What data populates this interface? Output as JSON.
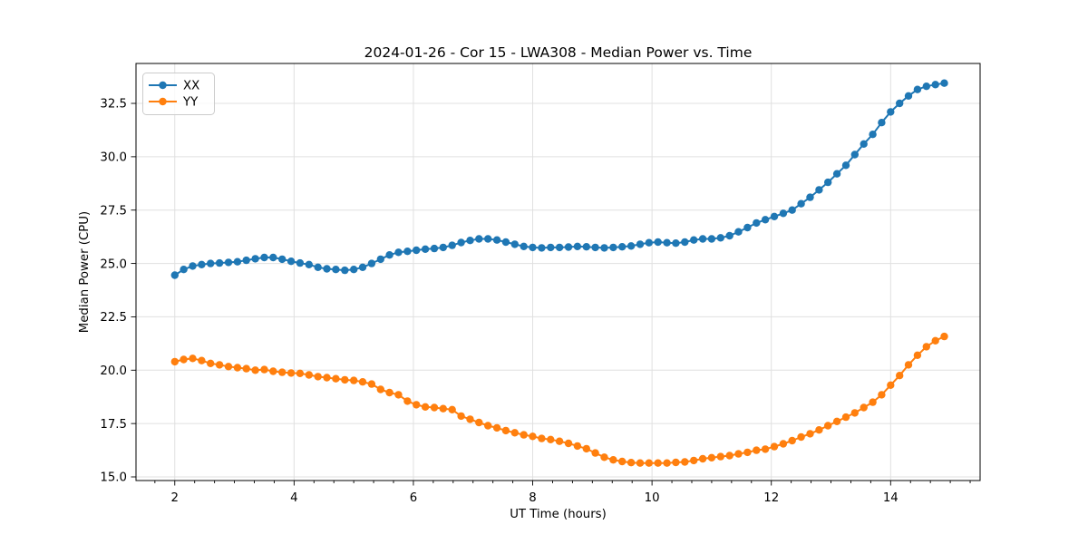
{
  "figure": {
    "background": "#ffffff"
  },
  "chart_data": {
    "type": "line",
    "title": "2024-01-26 - Cor 15 - LWA308 - Median Power vs. Time",
    "xlabel": "UT Time (hours)",
    "ylabel": "Median Power (CPU)",
    "xlim": [
      1.35,
      15.5
    ],
    "ylim": [
      14.83,
      34.37
    ],
    "grid": true,
    "grid_color": "#e0e0e0",
    "spine_color": "#000000",
    "legend_position": "upper left",
    "x_ticks": [
      2,
      4,
      6,
      8,
      10,
      12,
      14
    ],
    "x_tick_labels": [
      "2",
      "4",
      "6",
      "8",
      "10",
      "12",
      "14"
    ],
    "x_minor_step": 0.3333333,
    "y_ticks": [
      15.0,
      17.5,
      20.0,
      22.5,
      25.0,
      27.5,
      30.0,
      32.5
    ],
    "y_tick_labels": [
      "15.0",
      "17.5",
      "20.0",
      "22.5",
      "25.0",
      "27.5",
      "30.0",
      "32.5"
    ],
    "x": [
      2.0,
      2.15,
      2.3,
      2.45,
      2.6,
      2.75,
      2.9,
      3.05,
      3.2,
      3.35,
      3.5,
      3.65,
      3.8,
      3.95,
      4.1,
      4.25,
      4.4,
      4.55,
      4.7,
      4.85,
      5.0,
      5.15,
      5.3,
      5.45,
      5.6,
      5.75,
      5.9,
      6.05,
      6.2,
      6.35,
      6.5,
      6.65,
      6.8,
      6.95,
      7.1,
      7.25,
      7.4,
      7.55,
      7.7,
      7.85,
      8.0,
      8.15,
      8.3,
      8.45,
      8.6,
      8.75,
      8.9,
      9.05,
      9.2,
      9.35,
      9.5,
      9.65,
      9.8,
      9.95,
      10.1,
      10.25,
      10.4,
      10.55,
      10.7,
      10.85,
      11.0,
      11.15,
      11.3,
      11.45,
      11.6,
      11.75,
      11.9,
      12.05,
      12.2,
      12.35,
      12.5,
      12.65,
      12.8,
      12.95,
      13.1,
      13.25,
      13.4,
      13.55,
      13.7,
      13.85,
      14.0,
      14.15,
      14.3,
      14.45,
      14.6,
      14.75,
      14.9
    ],
    "series": [
      {
        "name": "XX",
        "color": "#1f77b4",
        "values": [
          24.45,
          24.72,
          24.88,
          24.95,
          25.0,
          25.02,
          25.05,
          25.08,
          25.15,
          25.22,
          25.28,
          25.28,
          25.2,
          25.1,
          25.02,
          24.95,
          24.82,
          24.75,
          24.72,
          24.68,
          24.72,
          24.82,
          25.0,
          25.2,
          25.4,
          25.52,
          25.57,
          25.62,
          25.67,
          25.7,
          25.75,
          25.85,
          25.98,
          26.08,
          26.15,
          26.15,
          26.1,
          26.0,
          25.9,
          25.8,
          25.75,
          25.73,
          25.75,
          25.75,
          25.77,
          25.8,
          25.78,
          25.75,
          25.73,
          25.75,
          25.78,
          25.82,
          25.9,
          25.97,
          26.0,
          25.97,
          25.95,
          26.0,
          26.1,
          26.15,
          26.15,
          26.2,
          26.3,
          26.48,
          26.68,
          26.9,
          27.05,
          27.2,
          27.35,
          27.5,
          27.8,
          28.1,
          28.45,
          28.8,
          29.2,
          29.6,
          30.1,
          30.6,
          31.05,
          31.6,
          32.1,
          32.5,
          32.85,
          33.15,
          33.3,
          33.38,
          33.45
        ]
      },
      {
        "name": "YY",
        "color": "#ff7f0e",
        "values": [
          20.4,
          20.5,
          20.55,
          20.45,
          20.32,
          20.25,
          20.17,
          20.12,
          20.07,
          20.0,
          20.03,
          19.95,
          19.9,
          19.87,
          19.85,
          19.78,
          19.7,
          19.65,
          19.6,
          19.55,
          19.52,
          19.45,
          19.35,
          19.1,
          18.95,
          18.85,
          18.55,
          18.38,
          18.28,
          18.25,
          18.2,
          18.15,
          17.85,
          17.7,
          17.55,
          17.4,
          17.3,
          17.17,
          17.07,
          16.97,
          16.9,
          16.8,
          16.75,
          16.67,
          16.57,
          16.45,
          16.32,
          16.12,
          15.92,
          15.8,
          15.72,
          15.67,
          15.65,
          15.65,
          15.65,
          15.65,
          15.68,
          15.7,
          15.77,
          15.85,
          15.9,
          15.95,
          16.0,
          16.08,
          16.15,
          16.25,
          16.3,
          16.42,
          16.55,
          16.7,
          16.87,
          17.02,
          17.2,
          17.4,
          17.6,
          17.8,
          18.0,
          18.25,
          18.5,
          18.85,
          19.3,
          19.75,
          20.25,
          20.7,
          21.1,
          21.38,
          21.58
        ]
      }
    ],
    "marker": "o",
    "marker_radius": 4.2,
    "line_width": 2
  }
}
